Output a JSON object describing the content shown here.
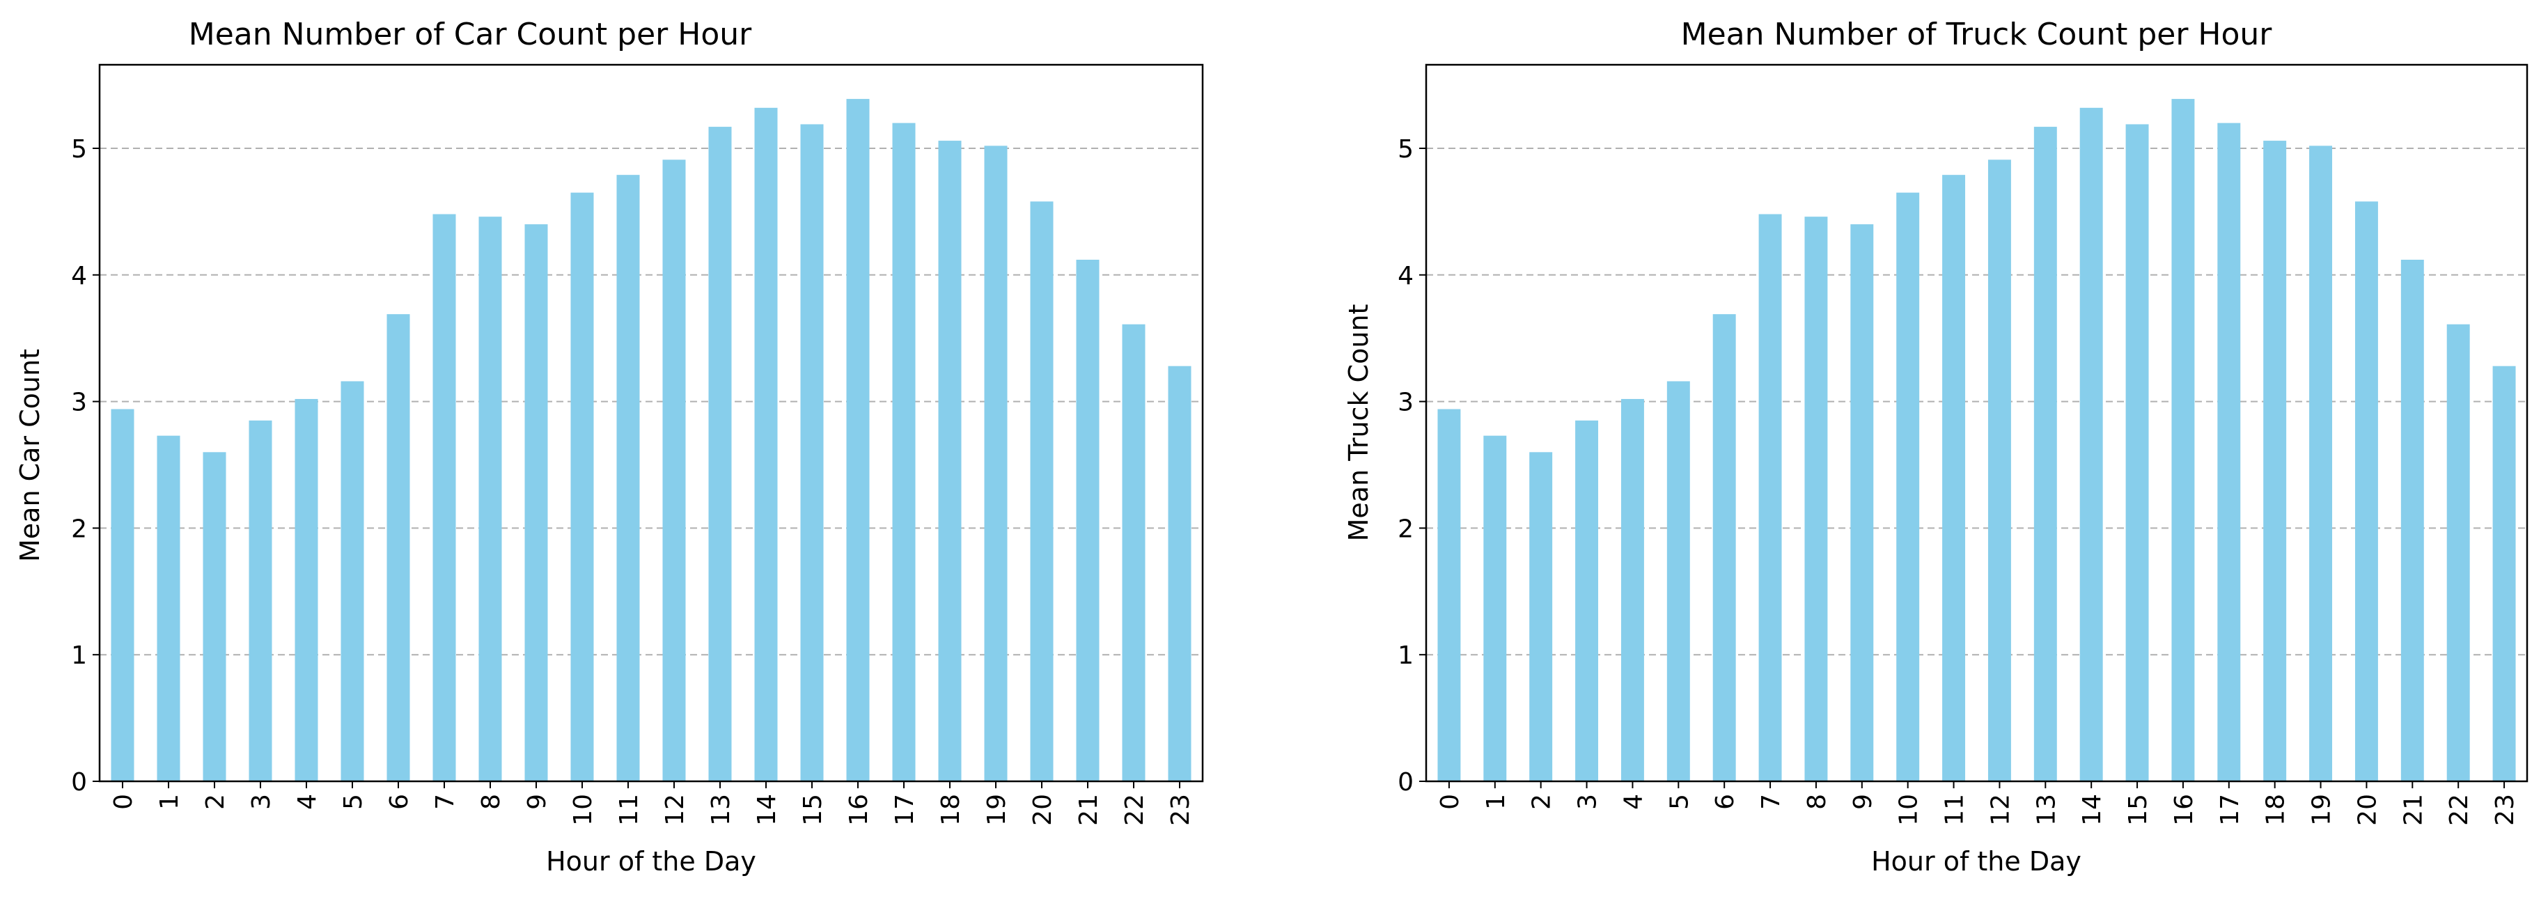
{
  "chart_data": [
    {
      "type": "bar",
      "title": "Mean Number of Car Count per Hour",
      "xlabel": "Hour of the Day",
      "ylabel": "Mean Car Count",
      "categories": [
        "0",
        "1",
        "2",
        "3",
        "4",
        "5",
        "6",
        "7",
        "8",
        "9",
        "10",
        "11",
        "12",
        "13",
        "14",
        "15",
        "16",
        "17",
        "18",
        "19",
        "20",
        "21",
        "22",
        "23"
      ],
      "values": [
        2.94,
        2.73,
        2.6,
        2.85,
        3.02,
        3.16,
        3.69,
        4.48,
        4.46,
        4.4,
        4.65,
        4.79,
        4.91,
        5.17,
        5.32,
        5.19,
        5.39,
        5.2,
        5.06,
        5.02,
        4.58,
        4.12,
        3.61,
        3.28
      ],
      "ylim": [
        0,
        5.66
      ],
      "yticks": [
        0,
        1,
        2,
        3,
        4,
        5
      ],
      "grid": "y-dashed",
      "legend": "none",
      "bar_color": "#87ceeb"
    },
    {
      "type": "bar",
      "title": "Mean Number of Truck Count per Hour",
      "xlabel": "Hour of the Day",
      "ylabel": "Mean Truck Count",
      "categories": [
        "0",
        "1",
        "2",
        "3",
        "4",
        "5",
        "6",
        "7",
        "8",
        "9",
        "10",
        "11",
        "12",
        "13",
        "14",
        "15",
        "16",
        "17",
        "18",
        "19",
        "20",
        "21",
        "22",
        "23"
      ],
      "values": [
        2.94,
        2.73,
        2.6,
        2.85,
        3.02,
        3.16,
        3.69,
        4.48,
        4.46,
        4.4,
        4.65,
        4.79,
        4.91,
        5.17,
        5.32,
        5.19,
        5.39,
        5.2,
        5.06,
        5.02,
        4.58,
        4.12,
        3.61,
        3.28
      ],
      "ylim": [
        0,
        5.66
      ],
      "yticks": [
        0,
        1,
        2,
        3,
        4,
        5
      ],
      "grid": "y-dashed",
      "legend": "none",
      "bar_color": "#87ceeb"
    }
  ]
}
